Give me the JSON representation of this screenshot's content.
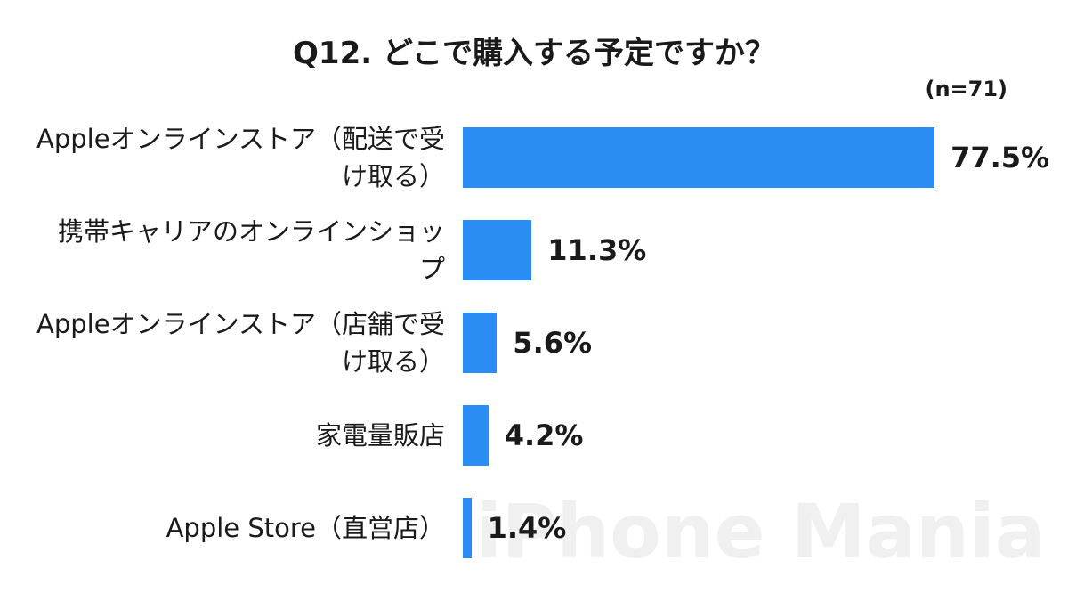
{
  "chart_data": {
    "type": "hbar",
    "title": "Q12. どこで購入する予定ですか？",
    "note": "(n=71)",
    "watermark": "iPhone Mania",
    "categories": [
      "Appleオンラインストア（配送で受け取る）",
      "携帯キャリアのオンラインショップ",
      "Appleオンラインストア（店舗で受け取る）",
      "家電量販店",
      "Apple Store（直営店）"
    ],
    "values": [
      77.5,
      11.3,
      5.6,
      4.2,
      1.4
    ],
    "value_labels": [
      "77.5%",
      "11.3%",
      "5.6%",
      "4.2%",
      "1.4%"
    ],
    "color": "#2a8df4"
  }
}
